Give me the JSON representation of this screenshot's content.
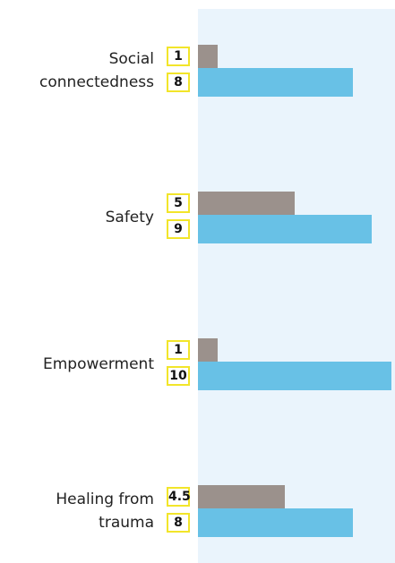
{
  "chart_data": {
    "type": "bar",
    "orientation": "horizontal",
    "categories": [
      "Social connectedness",
      "Safety",
      "Empowerment",
      "Healing from trauma"
    ],
    "series": [
      {
        "color": "#9b918c",
        "values": [
          1,
          5,
          1,
          4.5
        ]
      },
      {
        "color": "#68c1e6",
        "values": [
          8,
          9,
          10,
          8
        ]
      }
    ],
    "xlim": [
      0,
      10
    ]
  }
}
